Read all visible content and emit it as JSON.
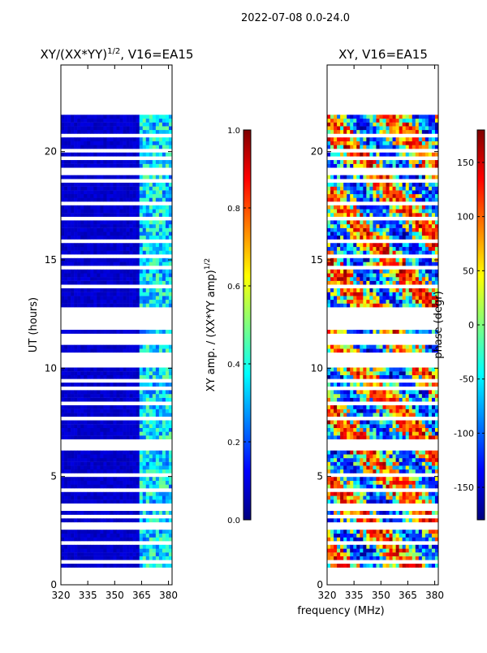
{
  "figure": {
    "suptitle": "2022-07-08 0.0-24.0",
    "shared_xlabel": "frequency (MHz)"
  },
  "colors": {
    "background": "#ffffff",
    "axis": "#000000",
    "text": "#000000"
  },
  "chart_data": [
    {
      "type": "heatmap",
      "title": "XY/(XX*YY)",
      "title_sup": "1/2",
      "title_suffix": ", V16=EA15",
      "xlabel": "",
      "ylabel": "UT (hours)",
      "xlim": [
        320,
        382
      ],
      "ylim": [
        0,
        24
      ],
      "xticks": [
        "320",
        "335",
        "350",
        "365",
        "380"
      ],
      "yticks": [
        "0",
        "5",
        "10",
        "15",
        "20"
      ],
      "data_extent_hours": [
        0.8,
        21.7
      ],
      "colormap": "jet",
      "colorbar": {
        "label": "XY amp. / (XX*YY amp)",
        "label_sup": "1/2",
        "range": [
          0.0,
          1.0
        ],
        "ticks": [
          "0.0",
          "0.2",
          "0.4",
          "0.6",
          "0.8",
          "1.0"
        ]
      },
      "bright_band_MHz": [
        363,
        382
      ],
      "typical_value_low_band": 0.05,
      "typical_value_high_band": 0.35
    },
    {
      "type": "heatmap",
      "title": "XY, V16=EA15",
      "xlabel": "",
      "ylabel": "",
      "xlim": [
        320,
        382
      ],
      "ylim": [
        0,
        24
      ],
      "xticks": [
        "320",
        "335",
        "350",
        "365",
        "380"
      ],
      "yticks": [
        "0",
        "5",
        "10",
        "15",
        "20"
      ],
      "data_extent_hours": [
        0.8,
        21.7
      ],
      "colormap": "jet",
      "colorbar": {
        "label": "phase (degr)",
        "range": [
          -180,
          180
        ],
        "ticks": [
          "-150",
          "-100",
          "-50",
          "0",
          "50",
          "100",
          "150"
        ]
      },
      "value_distribution": "random phases spanning -180 to 180 degrees"
    }
  ]
}
